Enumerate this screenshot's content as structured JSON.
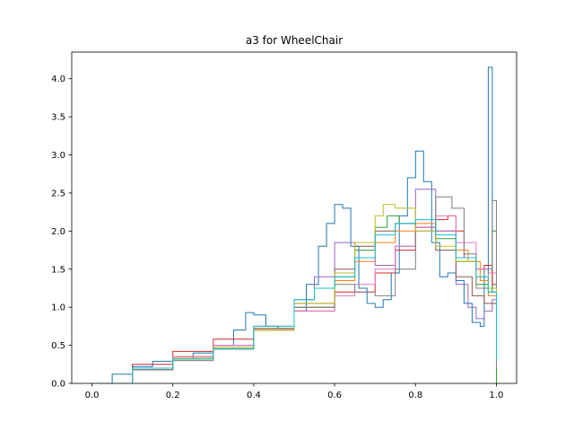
{
  "chart_data": {
    "type": "line",
    "title": "a3 for WheelChair",
    "xlabel": "",
    "ylabel": "",
    "xlim": [
      -0.05,
      1.05
    ],
    "ylim": [
      0.0,
      4.35
    ],
    "xticks": [
      0.0,
      0.2,
      0.4,
      0.6,
      0.8,
      1.0
    ],
    "xtick_labels": [
      "0.0",
      "0.2",
      "0.4",
      "0.6",
      "0.8",
      "1.0"
    ],
    "yticks": [
      0.0,
      0.5,
      1.0,
      1.5,
      2.0,
      2.5,
      3.0,
      3.5,
      4.0
    ],
    "ytick_labels": [
      "0.0",
      "0.5",
      "1.0",
      "1.5",
      "2.0",
      "2.5",
      "3.0",
      "3.5",
      "4.0"
    ],
    "grid": false,
    "legend": false,
    "step": true,
    "series": [
      {
        "color": "#1f77b4",
        "x": [
          0.0,
          0.05,
          0.1,
          0.15,
          0.2,
          0.25,
          0.3,
          0.35,
          0.38,
          0.4,
          0.43,
          0.46,
          0.5,
          0.53,
          0.56,
          0.58,
          0.6,
          0.62,
          0.64,
          0.66,
          0.68,
          0.7,
          0.72,
          0.74,
          0.76,
          0.78,
          0.8,
          0.82,
          0.84,
          0.86,
          0.88,
          0.9,
          0.92,
          0.94,
          0.96,
          0.97,
          0.98,
          0.99,
          1.0
        ],
        "y": [
          0.0,
          0.12,
          0.22,
          0.29,
          0.33,
          0.4,
          0.5,
          0.7,
          0.93,
          0.9,
          0.75,
          0.72,
          0.95,
          1.3,
          1.8,
          2.1,
          2.35,
          2.3,
          1.8,
          1.25,
          1.05,
          1.0,
          1.1,
          1.45,
          2.2,
          2.7,
          3.05,
          2.65,
          1.85,
          1.4,
          1.45,
          1.35,
          1.05,
          0.8,
          0.75,
          1.5,
          4.15,
          1.2,
          0.0
        ]
      },
      {
        "color": "#ff7f0e",
        "x": [
          0.0,
          0.1,
          0.2,
          0.3,
          0.4,
          0.5,
          0.6,
          0.65,
          0.7,
          0.75,
          0.8,
          0.85,
          0.9,
          0.93,
          0.96,
          0.98,
          1.0
        ],
        "y": [
          0.0,
          0.2,
          0.35,
          0.5,
          0.72,
          1.0,
          1.35,
          1.6,
          1.85,
          2.0,
          2.1,
          2.0,
          1.75,
          1.6,
          1.35,
          1.15,
          0.4
        ]
      },
      {
        "color": "#2ca02c",
        "x": [
          0.0,
          0.1,
          0.2,
          0.3,
          0.4,
          0.5,
          0.6,
          0.65,
          0.7,
          0.73,
          0.76,
          0.8,
          0.85,
          0.9,
          0.95,
          0.98,
          0.99,
          1.0
        ],
        "y": [
          0.0,
          0.18,
          0.33,
          0.47,
          0.7,
          1.0,
          1.4,
          1.75,
          2.05,
          2.2,
          2.1,
          2.05,
          1.9,
          1.6,
          1.3,
          1.2,
          2.0,
          0.0
        ]
      },
      {
        "color": "#d62728",
        "x": [
          0.0,
          0.1,
          0.2,
          0.3,
          0.4,
          0.5,
          0.6,
          0.7,
          0.75,
          0.8,
          0.85,
          0.88,
          0.9,
          0.92,
          0.95,
          0.97,
          0.99,
          1.0
        ],
        "y": [
          0.0,
          0.25,
          0.42,
          0.58,
          0.72,
          0.95,
          1.2,
          1.45,
          1.75,
          2.05,
          2.15,
          2.2,
          2.0,
          1.65,
          1.5,
          1.55,
          1.3,
          0.4
        ]
      },
      {
        "color": "#9467bd",
        "x": [
          0.0,
          0.1,
          0.2,
          0.3,
          0.4,
          0.5,
          0.55,
          0.6,
          0.65,
          0.7,
          0.75,
          0.8,
          0.85,
          0.9,
          0.93,
          0.95,
          0.97,
          0.99,
          1.0
        ],
        "y": [
          0.0,
          0.2,
          0.35,
          0.5,
          0.75,
          1.1,
          1.4,
          1.85,
          1.65,
          1.55,
          1.8,
          2.55,
          2.0,
          1.3,
          1.0,
          0.85,
          0.95,
          1.1,
          0.3
        ]
      },
      {
        "color": "#8c564b",
        "x": [
          0.0,
          0.1,
          0.2,
          0.3,
          0.4,
          0.5,
          0.6,
          0.65,
          0.7,
          0.75,
          0.8,
          0.85,
          0.9,
          0.94,
          0.97,
          1.0
        ],
        "y": [
          0.0,
          0.18,
          0.32,
          0.45,
          0.72,
          1.05,
          1.5,
          1.8,
          2.0,
          2.1,
          2.05,
          1.75,
          1.4,
          1.15,
          1.05,
          0.3
        ]
      },
      {
        "color": "#e377c2",
        "x": [
          0.0,
          0.1,
          0.2,
          0.3,
          0.4,
          0.5,
          0.6,
          0.65,
          0.7,
          0.75,
          0.8,
          0.85,
          0.9,
          0.95,
          0.98,
          1.0
        ],
        "y": [
          0.0,
          0.2,
          0.35,
          0.5,
          0.7,
          0.95,
          1.15,
          1.3,
          1.5,
          1.8,
          2.05,
          2.2,
          1.85,
          1.5,
          1.45,
          0.5
        ]
      },
      {
        "color": "#7f7f7f",
        "x": [
          0.0,
          0.1,
          0.2,
          0.3,
          0.4,
          0.5,
          0.6,
          0.65,
          0.7,
          0.75,
          0.8,
          0.85,
          0.89,
          0.92,
          0.95,
          0.98,
          0.99,
          1.0
        ],
        "y": [
          0.0,
          0.18,
          0.3,
          0.45,
          0.7,
          1.0,
          1.3,
          1.2,
          1.15,
          1.5,
          2.0,
          2.45,
          2.3,
          1.7,
          1.25,
          1.5,
          2.4,
          0.2
        ]
      },
      {
        "color": "#bcbd22",
        "x": [
          0.0,
          0.1,
          0.2,
          0.3,
          0.4,
          0.5,
          0.6,
          0.65,
          0.7,
          0.72,
          0.75,
          0.8,
          0.85,
          0.9,
          0.95,
          0.98,
          1.0
        ],
        "y": [
          0.0,
          0.2,
          0.33,
          0.47,
          0.7,
          1.05,
          1.45,
          1.85,
          2.2,
          2.35,
          2.3,
          2.0,
          1.8,
          1.6,
          1.4,
          1.25,
          0.35
        ]
      },
      {
        "color": "#17becf",
        "x": [
          0.0,
          0.1,
          0.2,
          0.3,
          0.4,
          0.5,
          0.55,
          0.6,
          0.65,
          0.7,
          0.75,
          0.8,
          0.85,
          0.9,
          0.95,
          0.98,
          1.0
        ],
        "y": [
          0.0,
          0.2,
          0.32,
          0.45,
          0.75,
          1.1,
          1.25,
          1.4,
          1.65,
          1.95,
          2.1,
          2.15,
          1.95,
          1.65,
          1.4,
          1.2,
          0.3
        ]
      }
    ]
  }
}
